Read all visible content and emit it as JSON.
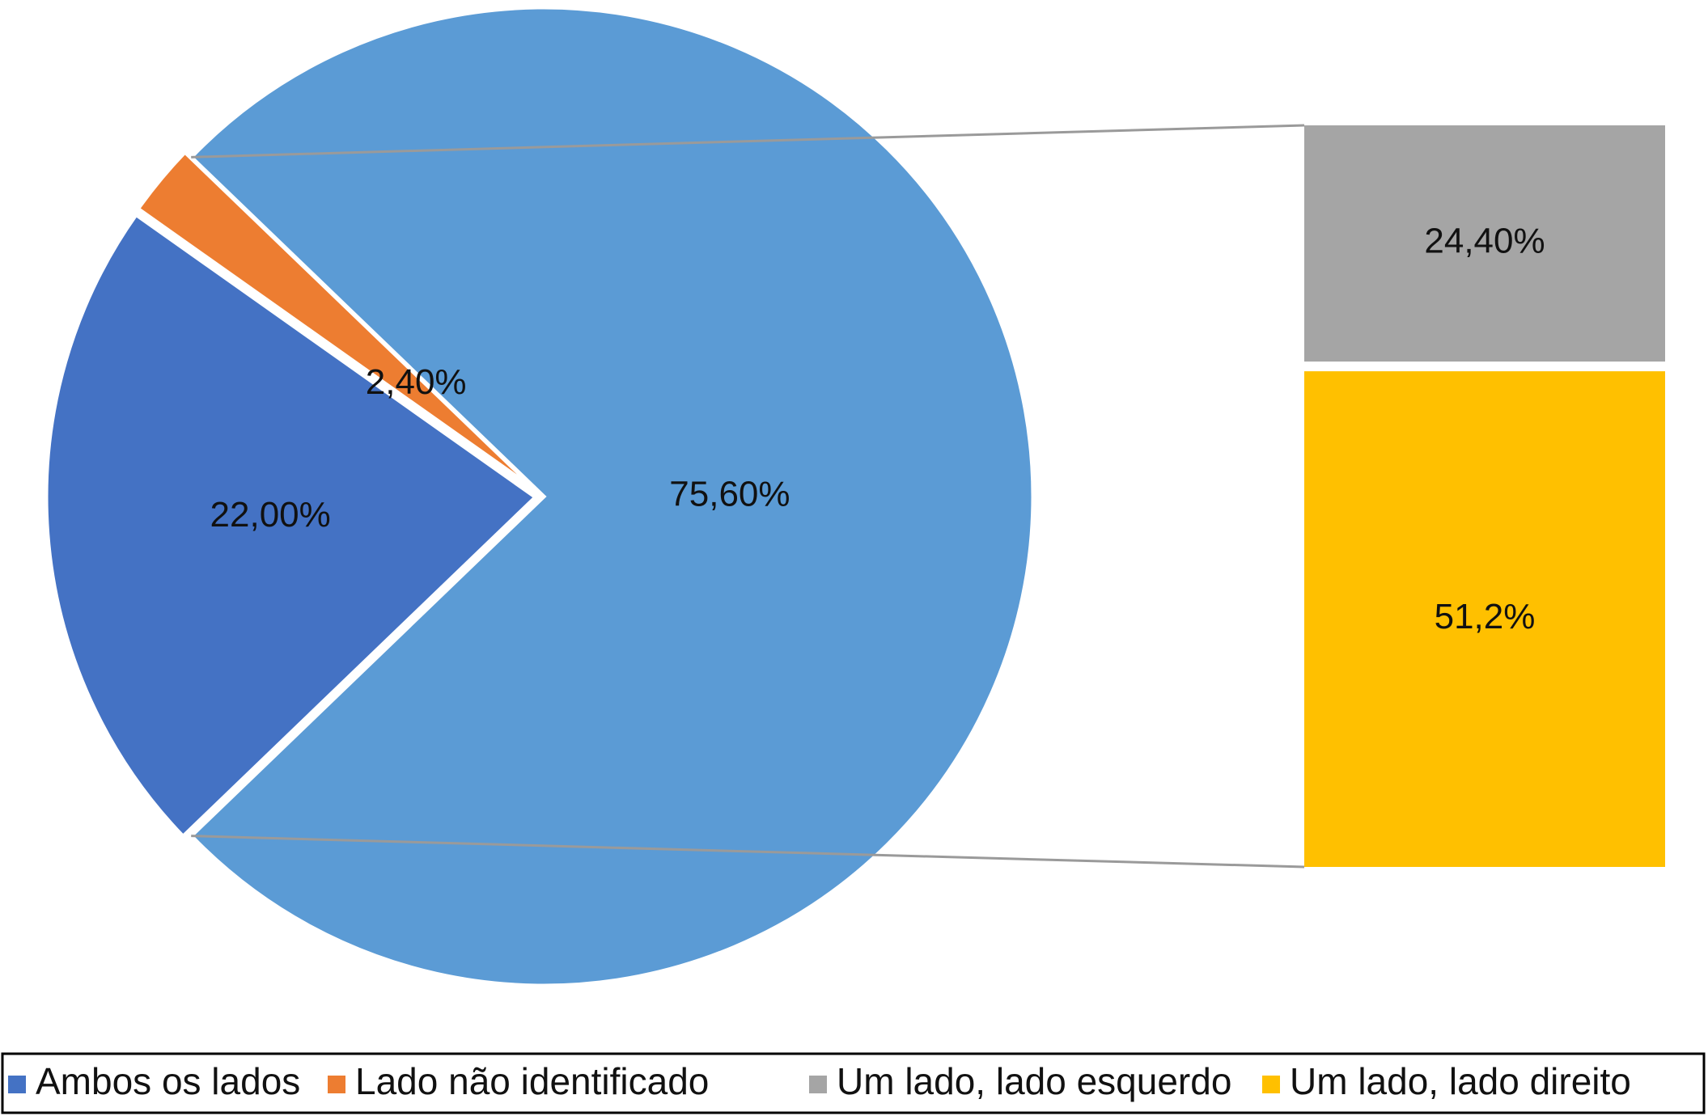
{
  "chart_data": {
    "type": "pie",
    "variant": "bar-of-pie",
    "pie": {
      "slices": [
        {
          "name": "Ambos os lados",
          "value": 22.0,
          "label": "22,00%",
          "color": "#4472C4"
        },
        {
          "name": "Lado não identificado",
          "value": 2.4,
          "label": "2,40%",
          "color": "#ED7D31"
        },
        {
          "name": "Um lado",
          "value": 75.6,
          "label": "75,60%",
          "color": "#5B9BD5"
        }
      ]
    },
    "bar": {
      "segments": [
        {
          "name": "Um lado, lado esquerdo",
          "value": 24.4,
          "label": "24,40%",
          "color": "#A5A5A5"
        },
        {
          "name": "Um lado, lado direito",
          "value": 51.2,
          "label": "51,2%",
          "color": "#FFC000"
        }
      ]
    },
    "legend": {
      "placement": "bottom",
      "entries": [
        {
          "label": "Ambos os lados",
          "color": "#4472C4"
        },
        {
          "label": "Lado não identificado",
          "color": "#ED7D31"
        },
        {
          "label": "Um lado, lado esquerdo",
          "color": "#A5A5A5"
        },
        {
          "label": "Um lado, lado direito",
          "color": "#FFC000"
        }
      ]
    }
  }
}
